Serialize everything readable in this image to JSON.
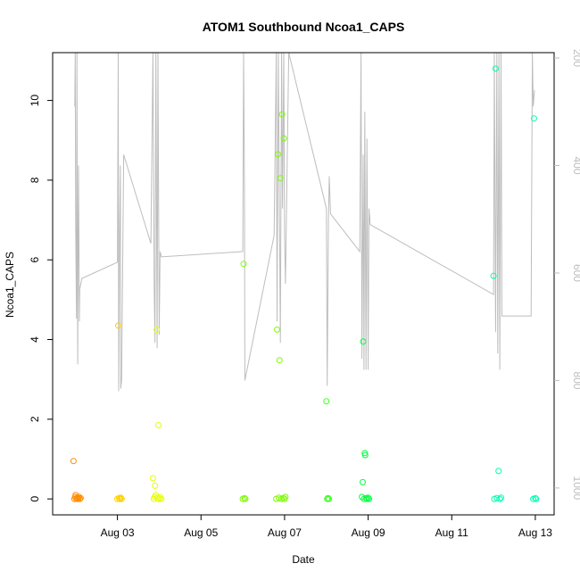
{
  "chart_data": {
    "type": "scatter",
    "title": "ATOM1 Southbound Ncoa1_CAPS",
    "xlabel": "Date",
    "ylabel": "Ncoa1_CAPS",
    "x_ticks": [
      "Aug 03",
      "Aug 05",
      "Aug 07",
      "Aug 09",
      "Aug 11",
      "Aug 13"
    ],
    "x_tick_days": [
      3,
      5,
      7,
      9,
      11,
      13
    ],
    "xlim_days": [
      1.45,
      13.45
    ],
    "ylim": [
      -0.4,
      11.2
    ],
    "y_ticks": [
      0,
      2,
      4,
      6,
      8,
      10
    ],
    "y2_ticks": [
      200,
      400,
      600,
      800,
      1000
    ],
    "y2lim": [
      1050,
      190
    ],
    "y2_reversed": true,
    "colors": {
      "depth_trace": "#bdbdbd",
      "gradient": [
        "#ff8c00",
        "#ffd000",
        "#e6ff00",
        "#7cfc00",
        "#00ff40",
        "#00ffb0"
      ]
    },
    "depth_trace": [
      [
        1.98,
        290
      ],
      [
        1.99,
        95
      ],
      [
        2.0,
        510
      ],
      [
        2.02,
        685
      ],
      [
        2.03,
        95
      ],
      [
        2.05,
        770
      ],
      [
        2.07,
        400
      ],
      [
        2.09,
        690
      ],
      [
        2.1,
        630
      ],
      [
        2.15,
        610
      ],
      [
        3.0,
        580
      ],
      [
        3.02,
        95
      ],
      [
        3.03,
        820
      ],
      [
        3.05,
        540
      ],
      [
        3.07,
        400
      ],
      [
        3.08,
        815
      ],
      [
        3.1,
        800
      ],
      [
        3.15,
        380
      ],
      [
        3.8,
        545
      ],
      [
        3.85,
        95
      ],
      [
        3.88,
        630
      ],
      [
        3.9,
        730
      ],
      [
        3.92,
        95
      ],
      [
        3.95,
        740
      ],
      [
        3.97,
        95
      ],
      [
        4.0,
        715
      ],
      [
        4.02,
        560
      ],
      [
        4.05,
        570
      ],
      [
        6.0,
        560
      ],
      [
        6.02,
        95
      ],
      [
        6.04,
        450
      ],
      [
        6.05,
        800
      ],
      [
        6.75,
        530
      ],
      [
        6.8,
        95
      ],
      [
        6.82,
        690
      ],
      [
        6.85,
        95
      ],
      [
        6.9,
        730
      ],
      [
        6.93,
        95
      ],
      [
        6.95,
        480
      ],
      [
        6.98,
        95
      ],
      [
        7.0,
        530
      ],
      [
        7.02,
        620
      ],
      [
        7.1,
        95
      ],
      [
        8.0,
        480
      ],
      [
        8.02,
        810
      ],
      [
        8.05,
        500
      ],
      [
        8.07,
        420
      ],
      [
        8.1,
        490
      ],
      [
        8.8,
        560
      ],
      [
        8.83,
        95
      ],
      [
        8.85,
        760
      ],
      [
        8.88,
        380
      ],
      [
        8.9,
        780
      ],
      [
        8.92,
        300
      ],
      [
        8.95,
        780
      ],
      [
        8.97,
        350
      ],
      [
        9.0,
        780
      ],
      [
        9.02,
        480
      ],
      [
        9.05,
        510
      ],
      [
        12.0,
        640
      ],
      [
        12.02,
        95
      ],
      [
        12.05,
        710
      ],
      [
        12.08,
        95
      ],
      [
        12.1,
        750
      ],
      [
        12.13,
        95
      ],
      [
        12.15,
        780
      ],
      [
        12.18,
        95
      ],
      [
        12.2,
        680
      ],
      [
        12.9,
        680
      ],
      [
        12.93,
        95
      ],
      [
        12.95,
        290
      ],
      [
        12.98,
        260
      ]
    ],
    "series": [
      {
        "color": "#ff8c00",
        "points": [
          [
            1.95,
            0.95
          ],
          [
            1.97,
            0.0
          ],
          [
            1.99,
            0.05
          ],
          [
            2.0,
            0.1
          ],
          [
            2.02,
            0.0
          ],
          [
            2.04,
            0.03
          ],
          [
            2.06,
            0.0
          ],
          [
            2.08,
            0.05
          ],
          [
            2.1,
            0.0
          ],
          [
            2.12,
            0.02
          ]
        ]
      },
      {
        "color": "#ffd000",
        "points": [
          [
            3.0,
            0.0
          ],
          [
            3.02,
            4.35
          ],
          [
            3.04,
            0.02
          ],
          [
            3.06,
            0.0
          ],
          [
            3.08,
            0.03
          ],
          [
            3.1,
            0.0
          ]
        ]
      },
      {
        "color": "#e6ff00",
        "points": [
          [
            3.85,
            0.52
          ],
          [
            3.87,
            0.0
          ],
          [
            3.89,
            0.05
          ],
          [
            3.9,
            0.33
          ],
          [
            3.92,
            0.1
          ],
          [
            3.94,
            4.25
          ],
          [
            3.96,
            0.02
          ],
          [
            3.98,
            1.85
          ],
          [
            4.0,
            0.0
          ],
          [
            4.02,
            0.04
          ],
          [
            4.05,
            0.0
          ]
        ]
      },
      {
        "color": "#7cfc00",
        "points": [
          [
            6.0,
            0.0
          ],
          [
            6.02,
            5.9
          ],
          [
            6.04,
            0.02
          ],
          [
            6.06,
            0.0
          ]
        ]
      },
      {
        "color": "#7cfc00",
        "points": [
          [
            6.8,
            0.0
          ],
          [
            6.82,
            4.25
          ],
          [
            6.84,
            8.65
          ],
          [
            6.86,
            0.03
          ],
          [
            6.88,
            3.48
          ],
          [
            6.9,
            8.05
          ],
          [
            6.92,
            0.0
          ],
          [
            6.94,
            9.65
          ],
          [
            6.96,
            0.02
          ],
          [
            6.98,
            9.05
          ],
          [
            7.0,
            0.0
          ],
          [
            7.02,
            0.05
          ]
        ]
      },
      {
        "color": "#3cff20",
        "points": [
          [
            8.0,
            2.45
          ],
          [
            8.02,
            0.0
          ],
          [
            8.04,
            0.02
          ],
          [
            8.06,
            0.0
          ]
        ]
      },
      {
        "color": "#00ff40",
        "points": [
          [
            8.85,
            0.05
          ],
          [
            8.87,
            0.42
          ],
          [
            8.88,
            3.95
          ],
          [
            8.9,
            0.0
          ],
          [
            8.92,
            1.15
          ],
          [
            8.93,
            1.1
          ],
          [
            8.95,
            0.02
          ],
          [
            8.97,
            0.0
          ],
          [
            9.0,
            0.03
          ],
          [
            9.02,
            0.0
          ]
        ]
      },
      {
        "color": "#00ffb0",
        "points": [
          [
            12.0,
            5.6
          ],
          [
            12.02,
            0.0
          ],
          [
            12.05,
            10.8
          ],
          [
            12.08,
            0.02
          ],
          [
            12.12,
            0.7
          ],
          [
            12.15,
            0.0
          ],
          [
            12.18,
            0.03
          ]
        ]
      },
      {
        "color": "#00ffb0",
        "points": [
          [
            12.95,
            0.0
          ],
          [
            12.97,
            9.55
          ],
          [
            13.0,
            0.02
          ],
          [
            13.02,
            0.0
          ]
        ]
      }
    ]
  }
}
